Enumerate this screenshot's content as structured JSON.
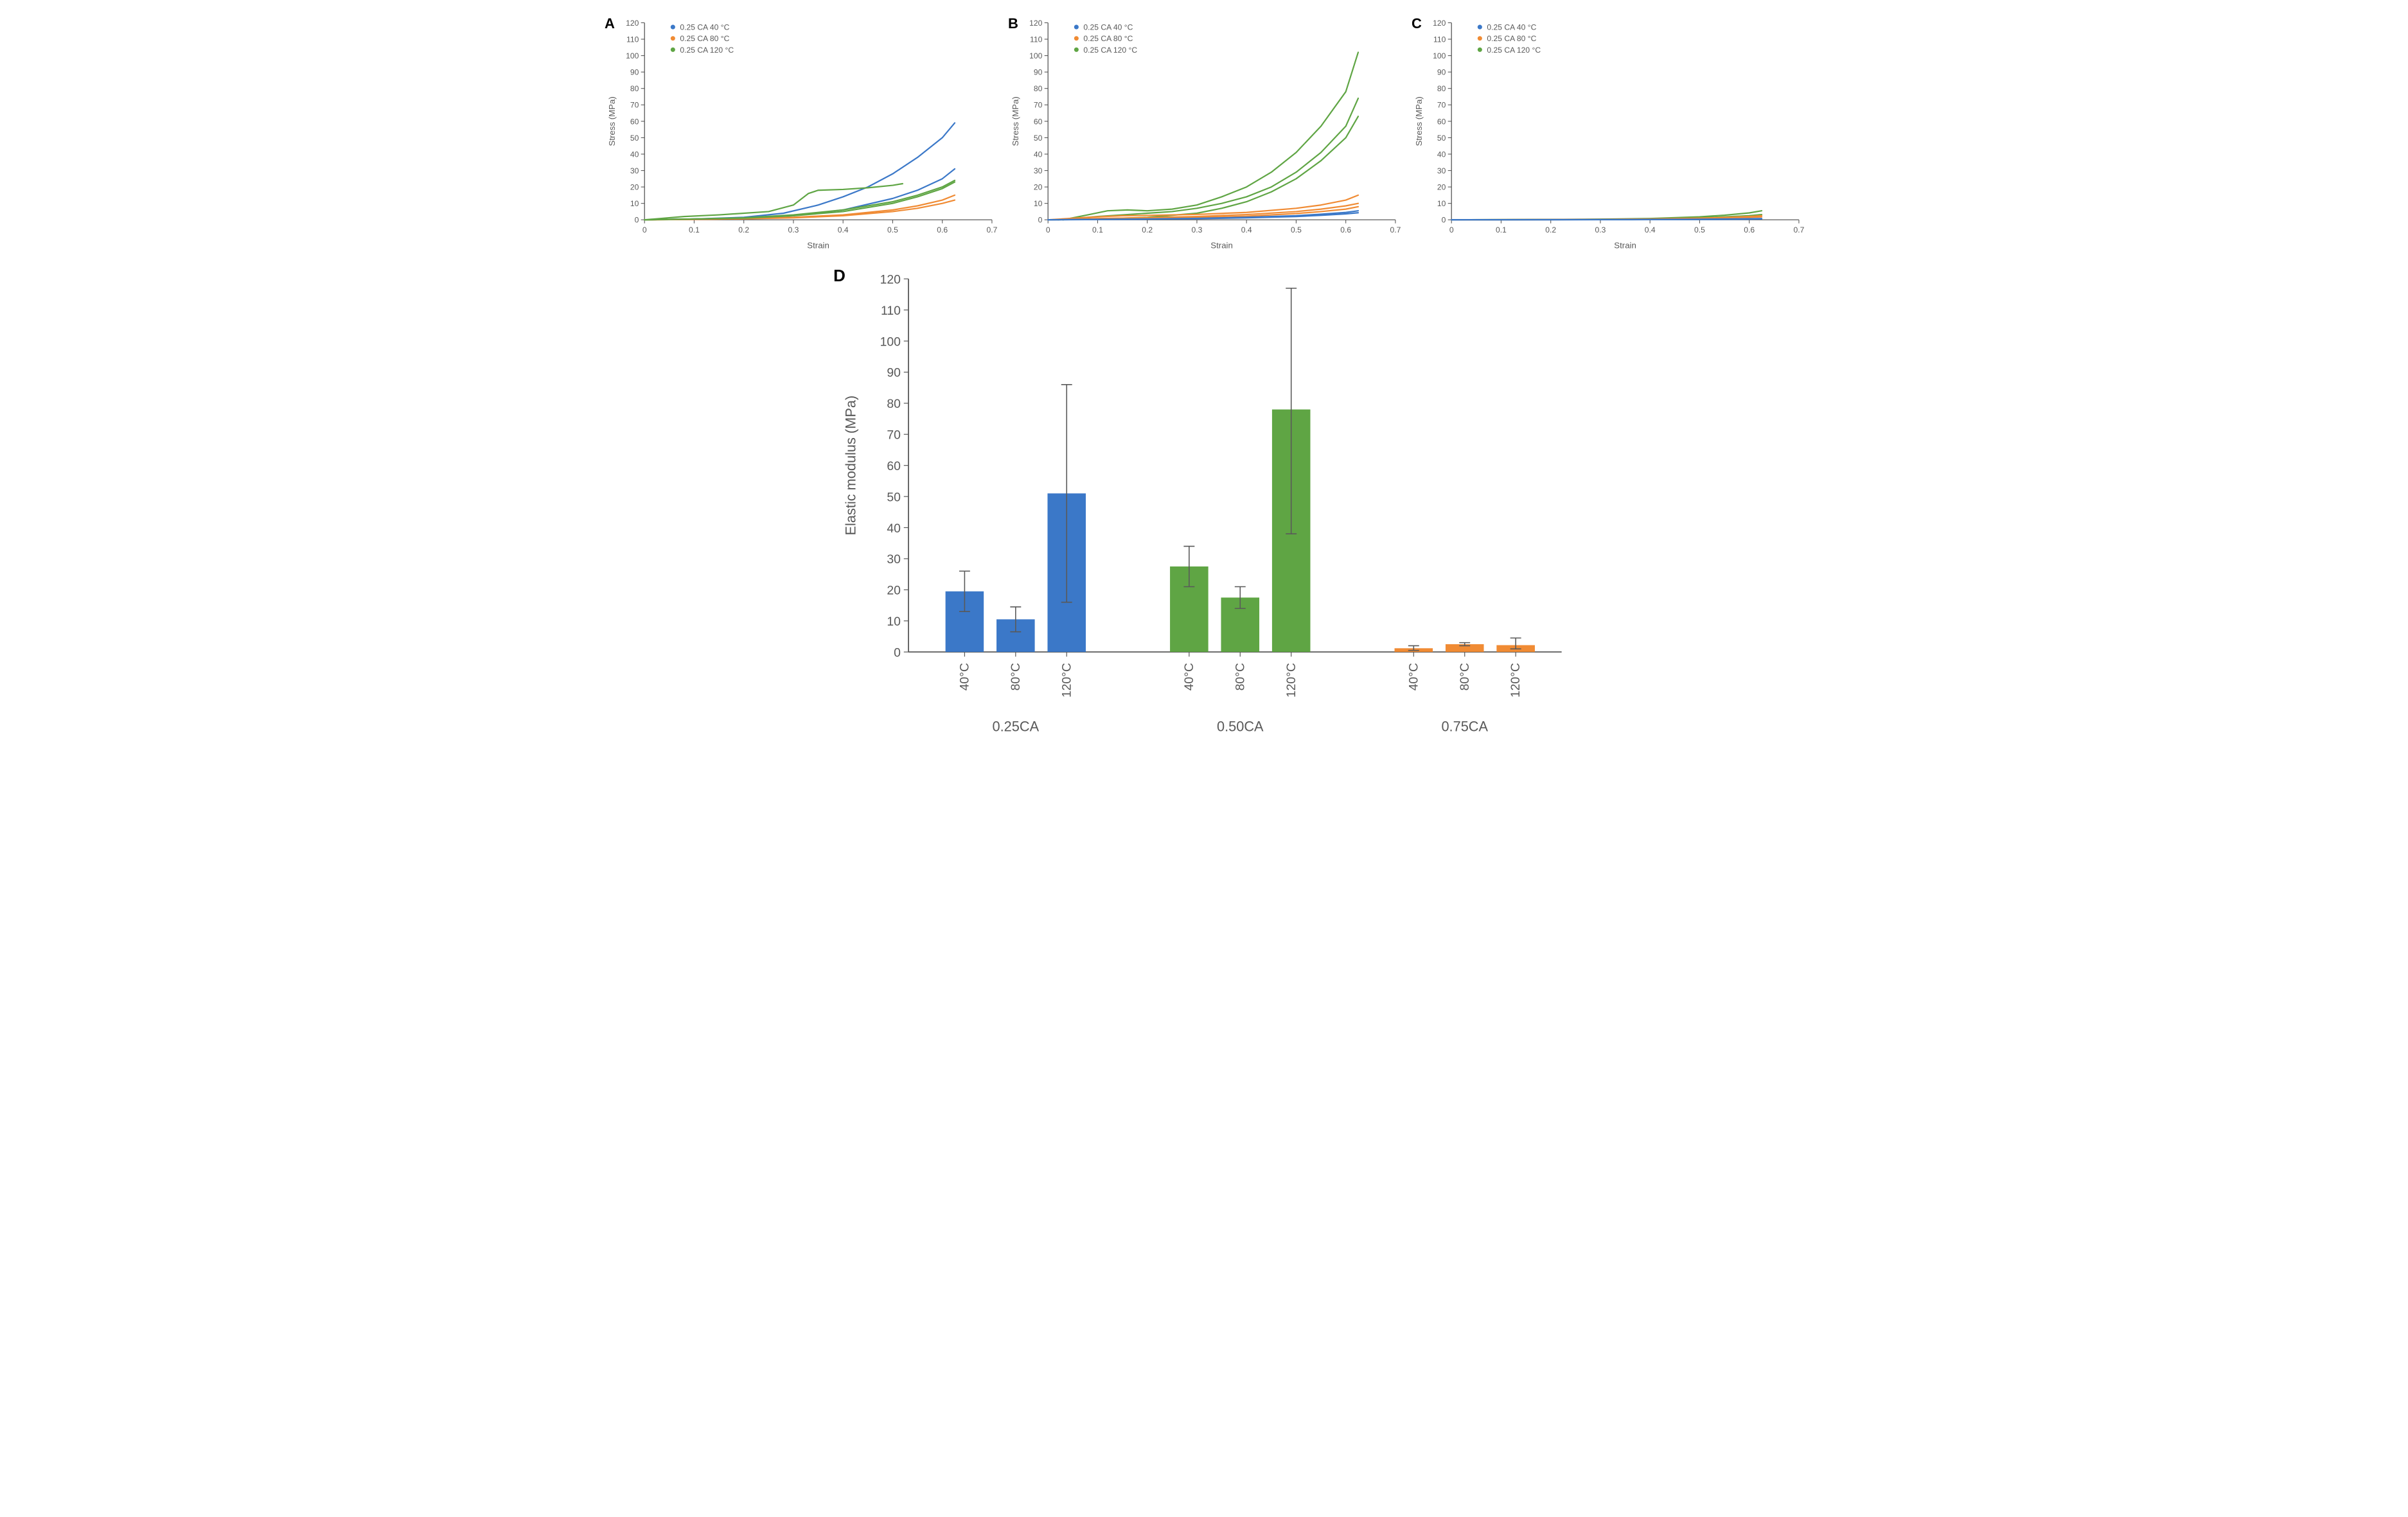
{
  "colors": {
    "blue": "#3b78c8",
    "orange": "#f08b34",
    "green": "#5fa544",
    "axis": "#595959",
    "grid": "#d9d9d9",
    "errbar": "#595959"
  },
  "line_chart_common": {
    "xlim": [
      0,
      0.7
    ],
    "ylim": [
      0,
      120
    ],
    "xticks": [
      0,
      0.1,
      0.2,
      0.3,
      0.4,
      0.5,
      0.6,
      0.7
    ],
    "yticks": [
      0,
      10,
      20,
      30,
      40,
      50,
      60,
      70,
      80,
      90,
      100,
      110,
      120
    ],
    "xlabel": "Strain",
    "ylabel": "Stress (MPa)",
    "axis_fontsize": 12,
    "tick_fontsize": 11,
    "legend_fontsize": 11,
    "line_width": 2,
    "legend": [
      {
        "label": "0.25 CA 40 °C",
        "color": "#3b78c8"
      },
      {
        "label": "0.25 CA 80 °C",
        "color": "#f08b34"
      },
      {
        "label": "0.25 CA 120 °C",
        "color": "#5fa544"
      }
    ]
  },
  "panels": {
    "A": {
      "series": [
        {
          "color": "#3b78c8",
          "pts": [
            [
              0,
              0
            ],
            [
              0.1,
              0.5
            ],
            [
              0.2,
              1.5
            ],
            [
              0.28,
              4
            ],
            [
              0.35,
              9
            ],
            [
              0.4,
              14
            ],
            [
              0.45,
              20
            ],
            [
              0.5,
              28
            ],
            [
              0.55,
              38
            ],
            [
              0.6,
              50
            ],
            [
              0.625,
              59
            ]
          ]
        },
        {
          "color": "#3b78c8",
          "pts": [
            [
              0,
              0
            ],
            [
              0.1,
              0.5
            ],
            [
              0.2,
              1
            ],
            [
              0.3,
              2.5
            ],
            [
              0.4,
              6
            ],
            [
              0.5,
              13
            ],
            [
              0.55,
              18
            ],
            [
              0.6,
              25
            ],
            [
              0.625,
              31
            ]
          ]
        },
        {
          "color": "#f08b34",
          "pts": [
            [
              0,
              0
            ],
            [
              0.1,
              0.3
            ],
            [
              0.2,
              0.7
            ],
            [
              0.3,
              1.5
            ],
            [
              0.4,
              3
            ],
            [
              0.5,
              6
            ],
            [
              0.55,
              8.5
            ],
            [
              0.6,
              12
            ],
            [
              0.625,
              15
            ]
          ]
        },
        {
          "color": "#f08b34",
          "pts": [
            [
              0,
              0
            ],
            [
              0.1,
              0.3
            ],
            [
              0.2,
              0.6
            ],
            [
              0.3,
              1.2
            ],
            [
              0.4,
              2.5
            ],
            [
              0.5,
              5
            ],
            [
              0.55,
              7
            ],
            [
              0.6,
              10
            ],
            [
              0.625,
              12
            ]
          ]
        },
        {
          "color": "#5fa544",
          "pts": [
            [
              0,
              0
            ],
            [
              0.08,
              2
            ],
            [
              0.15,
              3
            ],
            [
              0.25,
              5
            ],
            [
              0.3,
              9
            ],
            [
              0.33,
              16
            ],
            [
              0.35,
              18
            ],
            [
              0.4,
              18.5
            ],
            [
              0.45,
              19.5
            ],
            [
              0.5,
              21
            ],
            [
              0.52,
              22
            ]
          ]
        },
        {
          "color": "#5fa544",
          "pts": [
            [
              0,
              0
            ],
            [
              0.1,
              0.5
            ],
            [
              0.2,
              1.2
            ],
            [
              0.3,
              3
            ],
            [
              0.4,
              6
            ],
            [
              0.5,
              11
            ],
            [
              0.55,
              15
            ],
            [
              0.6,
              20
            ],
            [
              0.625,
              24
            ]
          ]
        },
        {
          "color": "#5fa544",
          "pts": [
            [
              0,
              0
            ],
            [
              0.1,
              0.5
            ],
            [
              0.2,
              1
            ],
            [
              0.3,
              2.5
            ],
            [
              0.4,
              5
            ],
            [
              0.5,
              10
            ],
            [
              0.55,
              14
            ],
            [
              0.6,
              19
            ],
            [
              0.625,
              23
            ]
          ]
        }
      ]
    },
    "B": {
      "series": [
        {
          "color": "#5fa544",
          "pts": [
            [
              0.03,
              0
            ],
            [
              0.08,
              3
            ],
            [
              0.12,
              5.5
            ],
            [
              0.16,
              6
            ],
            [
              0.2,
              5.5
            ],
            [
              0.25,
              6.5
            ],
            [
              0.3,
              9
            ],
            [
              0.35,
              14
            ],
            [
              0.4,
              20
            ],
            [
              0.45,
              29
            ],
            [
              0.5,
              41
            ],
            [
              0.55,
              57
            ],
            [
              0.6,
              78
            ],
            [
              0.625,
              102
            ]
          ]
        },
        {
          "color": "#5fa544",
          "pts": [
            [
              0.02,
              0
            ],
            [
              0.1,
              2
            ],
            [
              0.15,
              3
            ],
            [
              0.2,
              4
            ],
            [
              0.25,
              5
            ],
            [
              0.3,
              7
            ],
            [
              0.35,
              10
            ],
            [
              0.4,
              14
            ],
            [
              0.45,
              20
            ],
            [
              0.5,
              29
            ],
            [
              0.55,
              41
            ],
            [
              0.6,
              57
            ],
            [
              0.625,
              74
            ]
          ]
        },
        {
          "color": "#5fa544",
          "pts": [
            [
              0,
              0
            ],
            [
              0.1,
              0.5
            ],
            [
              0.2,
              1.5
            ],
            [
              0.3,
              4
            ],
            [
              0.35,
              7
            ],
            [
              0.4,
              11
            ],
            [
              0.45,
              17
            ],
            [
              0.5,
              25
            ],
            [
              0.55,
              36
            ],
            [
              0.6,
              50
            ],
            [
              0.625,
              63
            ]
          ]
        },
        {
          "color": "#f08b34",
          "pts": [
            [
              0,
              0
            ],
            [
              0.08,
              1.5
            ],
            [
              0.15,
              2.5
            ],
            [
              0.2,
              2.7
            ],
            [
              0.3,
              3.3
            ],
            [
              0.4,
              4.5
            ],
            [
              0.5,
              7
            ],
            [
              0.55,
              9
            ],
            [
              0.6,
              12
            ],
            [
              0.625,
              15
            ]
          ]
        },
        {
          "color": "#f08b34",
          "pts": [
            [
              0,
              0
            ],
            [
              0.1,
              0.8
            ],
            [
              0.2,
              1.3
            ],
            [
              0.3,
              2
            ],
            [
              0.4,
              3.2
            ],
            [
              0.5,
              5
            ],
            [
              0.55,
              6.5
            ],
            [
              0.6,
              8.5
            ],
            [
              0.625,
              10
            ]
          ]
        },
        {
          "color": "#f08b34",
          "pts": [
            [
              0,
              0
            ],
            [
              0.1,
              0.5
            ],
            [
              0.2,
              0.8
            ],
            [
              0.3,
              1.3
            ],
            [
              0.4,
              2.2
            ],
            [
              0.5,
              3.8
            ],
            [
              0.55,
              5
            ],
            [
              0.6,
              6.5
            ],
            [
              0.625,
              8
            ]
          ]
        },
        {
          "color": "#3b78c8",
          "pts": [
            [
              0,
              0
            ],
            [
              0.1,
              0.3
            ],
            [
              0.2,
              0.5
            ],
            [
              0.3,
              0.9
            ],
            [
              0.4,
              1.5
            ],
            [
              0.5,
              2.5
            ],
            [
              0.55,
              3.4
            ],
            [
              0.6,
              4.5
            ],
            [
              0.625,
              5.5
            ]
          ]
        },
        {
          "color": "#3b78c8",
          "pts": [
            [
              0,
              0
            ],
            [
              0.1,
              0.2
            ],
            [
              0.2,
              0.4
            ],
            [
              0.3,
              0.7
            ],
            [
              0.4,
              1.2
            ],
            [
              0.5,
              2
            ],
            [
              0.55,
              2.7
            ],
            [
              0.6,
              3.6
            ],
            [
              0.625,
              4.3
            ]
          ]
        }
      ]
    },
    "C": {
      "series": [
        {
          "color": "#5fa544",
          "pts": [
            [
              0,
              0
            ],
            [
              0.1,
              0.1
            ],
            [
              0.2,
              0.2
            ],
            [
              0.3,
              0.4
            ],
            [
              0.4,
              0.8
            ],
            [
              0.5,
              1.8
            ],
            [
              0.55,
              2.8
            ],
            [
              0.6,
              4.2
            ],
            [
              0.625,
              5.5
            ]
          ]
        },
        {
          "color": "#5fa544",
          "pts": [
            [
              0,
              0
            ],
            [
              0.1,
              0.1
            ],
            [
              0.2,
              0.15
            ],
            [
              0.3,
              0.3
            ],
            [
              0.4,
              0.6
            ],
            [
              0.5,
              1.2
            ],
            [
              0.55,
              1.8
            ],
            [
              0.6,
              2.5
            ],
            [
              0.625,
              3.2
            ]
          ]
        },
        {
          "color": "#f08b34",
          "pts": [
            [
              0,
              0
            ],
            [
              0.1,
              0.1
            ],
            [
              0.2,
              0.15
            ],
            [
              0.3,
              0.25
            ],
            [
              0.4,
              0.5
            ],
            [
              0.5,
              1
            ],
            [
              0.55,
              1.4
            ],
            [
              0.6,
              2
            ],
            [
              0.625,
              2.5
            ]
          ]
        },
        {
          "color": "#f08b34",
          "pts": [
            [
              0,
              0
            ],
            [
              0.1,
              0.05
            ],
            [
              0.2,
              0.1
            ],
            [
              0.3,
              0.2
            ],
            [
              0.4,
              0.4
            ],
            [
              0.5,
              0.8
            ],
            [
              0.55,
              1.1
            ],
            [
              0.6,
              1.5
            ],
            [
              0.625,
              1.8
            ]
          ]
        },
        {
          "color": "#3b78c8",
          "pts": [
            [
              0,
              0
            ],
            [
              0.1,
              0.05
            ],
            [
              0.2,
              0.08
            ],
            [
              0.3,
              0.12
            ],
            [
              0.4,
              0.2
            ],
            [
              0.5,
              0.35
            ],
            [
              0.55,
              0.5
            ],
            [
              0.6,
              0.65
            ],
            [
              0.625,
              0.8
            ]
          ]
        },
        {
          "color": "#3b78c8",
          "pts": [
            [
              0,
              0
            ],
            [
              0.1,
              0.03
            ],
            [
              0.2,
              0.05
            ],
            [
              0.3,
              0.08
            ],
            [
              0.4,
              0.12
            ],
            [
              0.5,
              0.2
            ],
            [
              0.55,
              0.28
            ],
            [
              0.6,
              0.38
            ],
            [
              0.625,
              0.5
            ]
          ]
        }
      ]
    }
  },
  "bar_chart": {
    "label": "D",
    "ylabel": "Elastic modulus (MPa)",
    "ylim": [
      0,
      120
    ],
    "yticks": [
      0,
      10,
      20,
      30,
      40,
      50,
      60,
      70,
      80,
      90,
      100,
      110,
      120
    ],
    "axis_fontsize": 18,
    "tick_fontsize": 16,
    "groups": [
      {
        "name": "0.25CA",
        "color": "#3b78c8",
        "bars": [
          {
            "sub": "40°C",
            "value": 19.5,
            "err_lo": 13.0,
            "err_hi": 26.0
          },
          {
            "sub": "80°C",
            "value": 10.5,
            "err_lo": 6.5,
            "err_hi": 14.5
          },
          {
            "sub": "120°C",
            "value": 51.0,
            "err_lo": 16.0,
            "err_hi": 86.0
          }
        ]
      },
      {
        "name": "0.50CA",
        "color": "#5fa544",
        "bars": [
          {
            "sub": "40°C",
            "value": 27.5,
            "err_lo": 21.0,
            "err_hi": 34.0
          },
          {
            "sub": "80°C",
            "value": 17.5,
            "err_lo": 14.0,
            "err_hi": 21.0
          },
          {
            "sub": "120°C",
            "value": 78.0,
            "err_lo": 38.0,
            "err_hi": 117.0
          }
        ]
      },
      {
        "name": "0.75CA",
        "color": "#f08b34",
        "bars": [
          {
            "sub": "40°C",
            "value": 1.2,
            "err_lo": 0.5,
            "err_hi": 2.0
          },
          {
            "sub": "80°C",
            "value": 2.5,
            "err_lo": 2.0,
            "err_hi": 3.0
          },
          {
            "sub": "120°C",
            "value": 2.2,
            "err_lo": 1.0,
            "err_hi": 4.5
          }
        ]
      }
    ],
    "bar_width": 0.75,
    "group_gap": 1.4,
    "grid": false
  }
}
